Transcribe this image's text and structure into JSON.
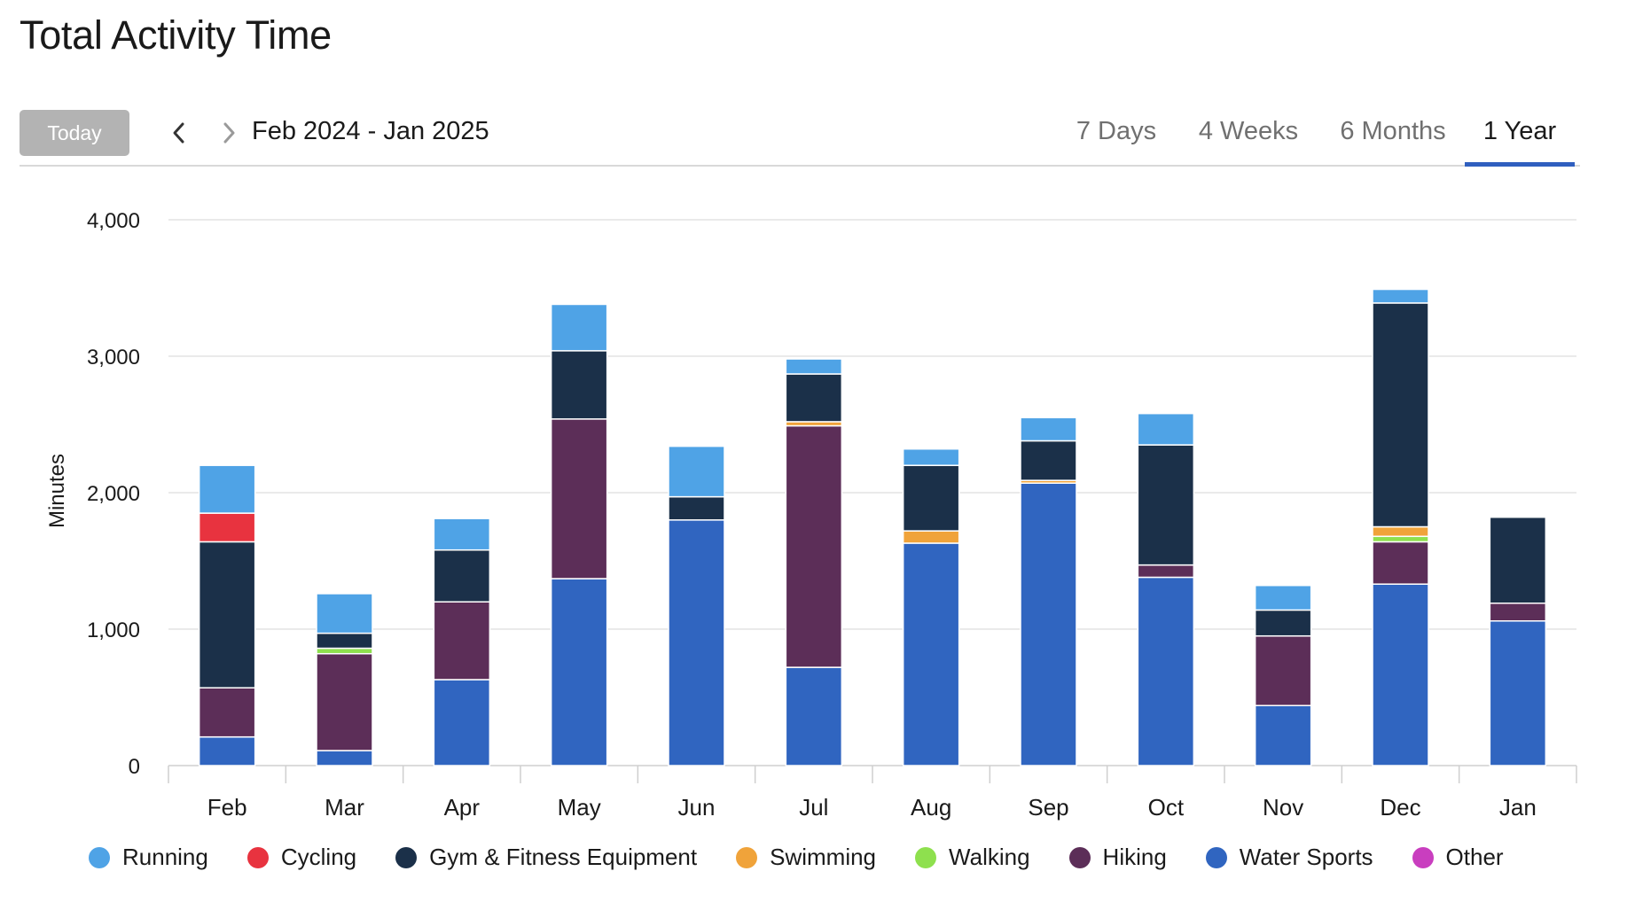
{
  "title": "Total Activity Time",
  "toolbar": {
    "today_label": "Today",
    "prev_icon": "chevron-left-icon",
    "next_icon": "chevron-right-icon",
    "date_range": "Feb 2024 - Jan 2025",
    "tabs": [
      {
        "label": "7 Days",
        "active": false
      },
      {
        "label": "4 Weeks",
        "active": false
      },
      {
        "label": "6 Months",
        "active": false
      },
      {
        "label": "1 Year",
        "active": true
      }
    ]
  },
  "chart_data": {
    "type": "bar",
    "stacked": true,
    "ylabel": "Minutes",
    "xlabel": "",
    "ylim": [
      0,
      4000
    ],
    "yticks": [
      0,
      1000,
      2000,
      3000,
      4000
    ],
    "ytick_labels": [
      "0",
      "1,000",
      "2,000",
      "3,000",
      "4,000"
    ],
    "grid": true,
    "legend_position": "bottom",
    "categories": [
      "Feb",
      "Mar",
      "Apr",
      "May",
      "Jun",
      "Jul",
      "Aug",
      "Sep",
      "Oct",
      "Nov",
      "Dec",
      "Jan"
    ],
    "series": [
      {
        "name": "Water Sports",
        "color": "#3065c0",
        "values": [
          210,
          110,
          630,
          1370,
          1800,
          720,
          1630,
          2070,
          1380,
          440,
          1330,
          1060
        ]
      },
      {
        "name": "Hiking",
        "color": "#5c2e58",
        "values": [
          360,
          710,
          570,
          1170,
          0,
          1770,
          0,
          0,
          90,
          510,
          310,
          130
        ]
      },
      {
        "name": "Walking",
        "color": "#8ee04e",
        "values": [
          0,
          40,
          0,
          0,
          0,
          0,
          0,
          0,
          0,
          0,
          40,
          0
        ]
      },
      {
        "name": "Swimming",
        "color": "#f0a33a",
        "values": [
          0,
          0,
          0,
          0,
          0,
          30,
          90,
          20,
          0,
          0,
          70,
          0
        ]
      },
      {
        "name": "Gym & Fitness Equipment",
        "color": "#1b3049",
        "values": [
          1070,
          110,
          380,
          500,
          170,
          350,
          480,
          290,
          880,
          190,
          1640,
          630
        ]
      },
      {
        "name": "Cycling",
        "color": "#e8333f",
        "values": [
          210,
          0,
          0,
          0,
          0,
          0,
          0,
          0,
          0,
          0,
          0,
          0
        ]
      },
      {
        "name": "Running",
        "color": "#4fa3e6",
        "values": [
          350,
          290,
          230,
          340,
          370,
          110,
          120,
          170,
          230,
          180,
          100,
          0
        ]
      },
      {
        "name": "Other",
        "color": "#c93ebf",
        "values": [
          0,
          0,
          0,
          0,
          0,
          0,
          0,
          0,
          0,
          0,
          0,
          0
        ]
      }
    ]
  },
  "legend": [
    {
      "label": "Running",
      "color": "#4fa3e6"
    },
    {
      "label": "Cycling",
      "color": "#e8333f"
    },
    {
      "label": "Gym & Fitness Equipment",
      "color": "#1b3049"
    },
    {
      "label": "Swimming",
      "color": "#f0a33a"
    },
    {
      "label": "Walking",
      "color": "#8ee04e"
    },
    {
      "label": "Hiking",
      "color": "#5c2e58"
    },
    {
      "label": "Water Sports",
      "color": "#3065c0"
    },
    {
      "label": "Other",
      "color": "#c93ebf"
    }
  ]
}
